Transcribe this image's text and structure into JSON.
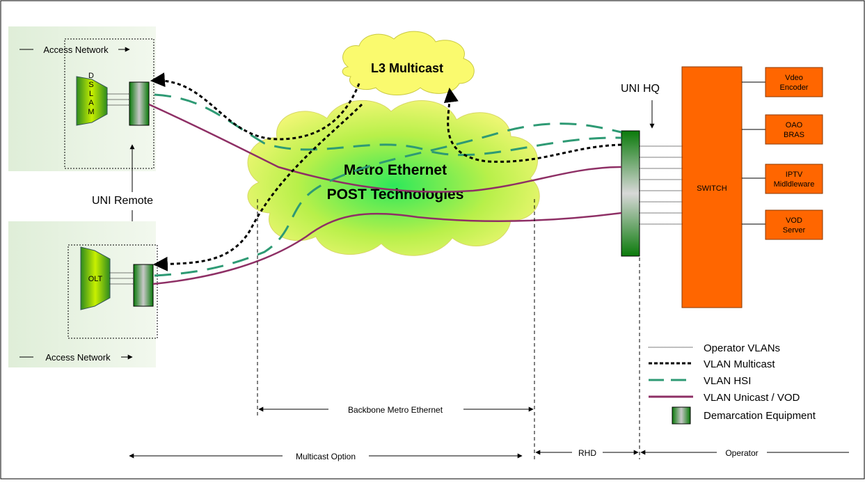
{
  "title": "",
  "access_top": {
    "label": "Access Network",
    "device_letters": [
      "D",
      "S",
      "L",
      "A",
      "M"
    ]
  },
  "access_bottom": {
    "label": "Access Network",
    "device": "OLT"
  },
  "uni_remote": "UNI Remote",
  "uni_hq": "UNI HQ",
  "l3_cloud": "L3 Multicast",
  "metro_cloud": {
    "line1": "Metro Ethernet",
    "line2": "POST Technologies"
  },
  "switch": "SWITCH",
  "services": [
    {
      "line1": "Vdeo",
      "line2": "Encoder"
    },
    {
      "line1": "OAO",
      "line2": "BRAS"
    },
    {
      "line1": "IPTV",
      "line2": "Midldleware"
    },
    {
      "line1": "VOD",
      "line2": "Server"
    }
  ],
  "spans": {
    "backbone": "Backbone Metro Ethernet",
    "multicast_option": "Multicast Option",
    "rhd": "RHD",
    "operator": "Operator"
  },
  "legend": [
    {
      "label": "Operator VLANs",
      "style": "operator"
    },
    {
      "label": "VLAN Multicast",
      "style": "multicast"
    },
    {
      "label": "VLAN HSI",
      "style": "hsi"
    },
    {
      "label": "VLAN Unicast / VOD",
      "style": "unicast"
    },
    {
      "label": "Demarcation Equipment",
      "style": "demarc"
    }
  ],
  "colors": {
    "orange": "#ff6600",
    "green_dark": "#0a7a0a",
    "hsi": "#2e9a74",
    "unicast": "#8e2f65",
    "multicast": "#000000",
    "cloud_yellow": "#f4f76a",
    "access_bg": "#e6f1e0"
  }
}
